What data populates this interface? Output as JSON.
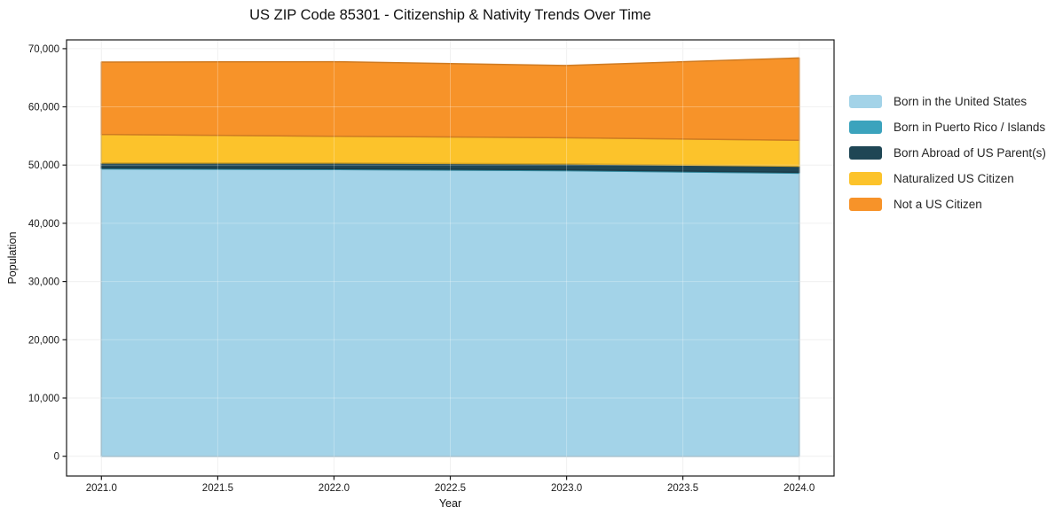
{
  "title": "US ZIP Code 85301 - Citizenship & Nativity Trends Over Time",
  "chart_data": {
    "type": "area",
    "stacked": true,
    "title": "US ZIP Code 85301 - Citizenship & Nativity Trends Over Time",
    "xlabel": "Year",
    "ylabel": "Population",
    "x": [
      2021,
      2022,
      2023,
      2024
    ],
    "xticks": [
      2021.0,
      2021.5,
      2022.0,
      2022.5,
      2023.0,
      2023.5,
      2024.0
    ],
    "yticks": [
      0,
      10000,
      20000,
      30000,
      40000,
      50000,
      60000,
      70000
    ],
    "xlim": [
      2020.85,
      2024.15
    ],
    "ylim": [
      -3400,
      71500
    ],
    "grid": true,
    "legend_position": "right",
    "series": [
      {
        "name": "Born in the United States",
        "color": "#a3d3e8",
        "values": [
          49350,
          49250,
          49050,
          48600
        ]
      },
      {
        "name": "Born in Puerto Rico / Islands",
        "color": "#3ba3bd",
        "values": [
          150,
          150,
          150,
          150
        ]
      },
      {
        "name": "Born Abroad of US Parent(s)",
        "color": "#1f4655",
        "values": [
          850,
          950,
          1000,
          1050
        ]
      },
      {
        "name": "Naturalized US Citizen",
        "color": "#fcc32b",
        "values": [
          4900,
          4600,
          4500,
          4450
        ]
      },
      {
        "name": "Not a US Citizen",
        "color": "#f79329",
        "values": [
          12450,
          12800,
          12400,
          14150
        ]
      }
    ]
  },
  "colors": {
    "grid_under": "#ececec",
    "grid_over": "rgba(255,255,255,0.28)",
    "frame": "#1a1a1a",
    "text": "#111111"
  }
}
